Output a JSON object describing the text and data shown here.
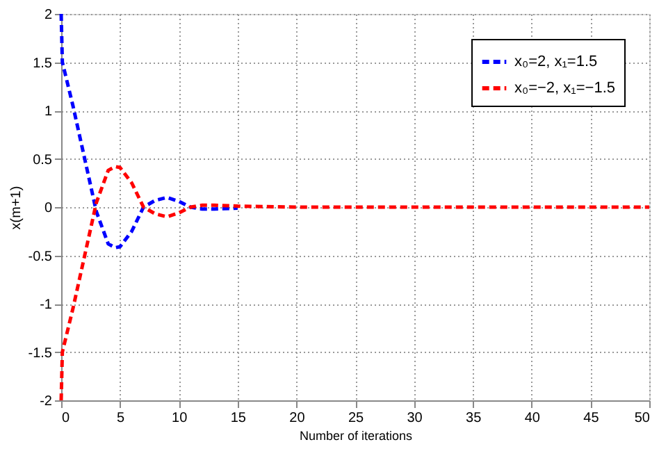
{
  "chart_data": {
    "type": "line",
    "xlabel": "Number of iterations",
    "ylabel": "x(m+1)",
    "xlim": [
      0,
      50
    ],
    "ylim": [
      -2,
      2
    ],
    "xticks": [
      0,
      5,
      10,
      15,
      20,
      25,
      30,
      35,
      40,
      45,
      50
    ],
    "yticks": [
      -2,
      -1.5,
      -1,
      -0.5,
      0,
      0.5,
      1,
      1.5,
      2
    ],
    "grid": true,
    "legend": "top right",
    "line_style": "dashed",
    "marker": "none",
    "series": [
      {
        "name": "x₀=2, x₁=1.5",
        "color": "#0000ff",
        "x": [
          0,
          0.1,
          1,
          2,
          3,
          4,
          4.6,
          5,
          6,
          7,
          8,
          9,
          10,
          11,
          12,
          13,
          15
        ],
        "values": [
          2,
          1.5,
          1.05,
          0.5,
          -0.05,
          -0.38,
          -0.42,
          -0.41,
          -0.25,
          0,
          0.07,
          0.1,
          0.06,
          0.0,
          -0.02,
          -0.02,
          -0.01
        ]
      },
      {
        "name": "x₀=−2, x₁=−1.5",
        "color": "#ff0000",
        "x": [
          0,
          0.1,
          1,
          2,
          3,
          4,
          4.6,
          5,
          6,
          7,
          8,
          9,
          10,
          11,
          12,
          13,
          15,
          20,
          30,
          40,
          50
        ],
        "values": [
          -2,
          -1.5,
          -1.05,
          -0.5,
          0.05,
          0.38,
          0.42,
          0.41,
          0.25,
          0,
          -0.07,
          -0.1,
          -0.06,
          0.0,
          0.02,
          0.02,
          0.01,
          0,
          0,
          0,
          0
        ]
      }
    ]
  }
}
